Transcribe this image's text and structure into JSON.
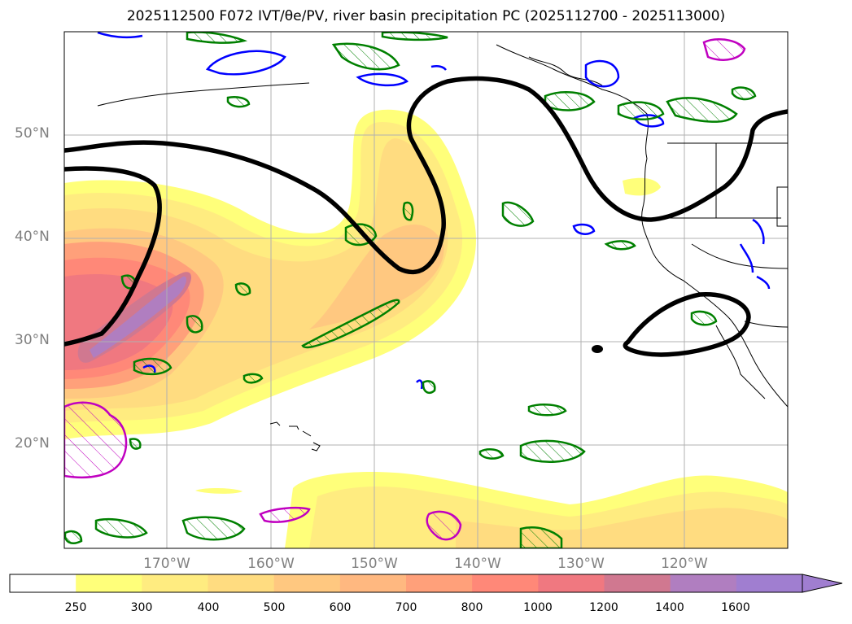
{
  "title": "2025112500 F072 IVT/θe/PV, river basin precipitation PC (2025112700 - 2025113000)",
  "map": {
    "lat_labels": [
      "50°N",
      "40°N",
      "30°N",
      "20°N"
    ],
    "lon_labels": [
      "170°W",
      "160°W",
      "150°W",
      "140°W",
      "130°W",
      "120°W"
    ]
  },
  "colorbar": {
    "ticks": [
      "250",
      "300",
      "400",
      "500",
      "600",
      "700",
      "800",
      "1000",
      "1200",
      "1400",
      "1600"
    ],
    "colors": [
      "#ffffff",
      "#ffff7a",
      "#ffec80",
      "#ffdc80",
      "#ffc880",
      "#ffb880",
      "#ffa07a",
      "#ff8878",
      "#f07880",
      "#d07890",
      "#b07ec0",
      "#a07ed0"
    ]
  }
}
